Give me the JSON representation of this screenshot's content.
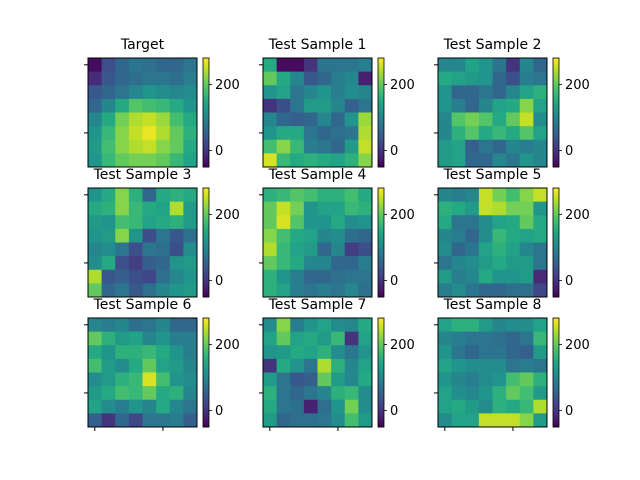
{
  "chart_data": [
    {
      "type": "heatmap",
      "title": "Target",
      "colorbar_ticks": [
        0,
        200
      ],
      "clim": [
        -50,
        280
      ],
      "colormap": "viridis",
      "grid": false,
      "values": [
        [
          -40,
          30,
          60,
          80,
          70,
          60,
          60,
          80
        ],
        [
          -10,
          40,
          60,
          70,
          80,
          80,
          70,
          90
        ],
        [
          40,
          60,
          80,
          100,
          120,
          110,
          100,
          110
        ],
        [
          60,
          100,
          150,
          190,
          180,
          170,
          150,
          120
        ],
        [
          100,
          150,
          210,
          240,
          250,
          230,
          180,
          150
        ],
        [
          120,
          170,
          220,
          250,
          270,
          240,
          200,
          160
        ],
        [
          130,
          180,
          220,
          240,
          250,
          220,
          200,
          150
        ],
        [
          120,
          170,
          200,
          210,
          210,
          200,
          170,
          140
        ]
      ]
    },
    {
      "type": "heatmap",
      "title": "Test Sample 1",
      "colorbar_ticks": [
        0,
        200
      ],
      "clim": [
        -50,
        280
      ],
      "colormap": "viridis",
      "grid": false,
      "values": [
        [
          150,
          -40,
          -40,
          0,
          80,
          80,
          80,
          90
        ],
        [
          200,
          150,
          100,
          40,
          60,
          90,
          100,
          -20
        ],
        [
          120,
          140,
          80,
          100,
          120,
          90,
          110,
          100
        ],
        [
          0,
          30,
          80,
          130,
          130,
          100,
          50,
          80
        ],
        [
          100,
          60,
          50,
          60,
          100,
          60,
          120,
          230
        ],
        [
          120,
          150,
          150,
          80,
          60,
          70,
          80,
          240
        ],
        [
          180,
          220,
          170,
          90,
          80,
          60,
          130,
          250
        ],
        [
          260,
          170,
          150,
          160,
          150,
          140,
          160,
          220
        ]
      ]
    },
    {
      "type": "heatmap",
      "title": "Test Sample 2",
      "colorbar_ticks": [
        0,
        200
      ],
      "clim": [
        -50,
        280
      ],
      "colormap": "viridis",
      "grid": false,
      "values": [
        [
          100,
          100,
          140,
          120,
          80,
          0,
          100,
          60
        ],
        [
          150,
          140,
          130,
          120,
          60,
          30,
          90,
          80
        ],
        [
          120,
          60,
          60,
          80,
          60,
          100,
          140,
          160
        ],
        [
          120,
          90,
          60,
          100,
          140,
          150,
          220,
          140
        ],
        [
          100,
          190,
          210,
          190,
          150,
          200,
          250,
          110
        ],
        [
          100,
          160,
          190,
          150,
          170,
          150,
          190,
          140
        ],
        [
          130,
          140,
          50,
          80,
          60,
          100,
          90,
          100
        ],
        [
          130,
          140,
          60,
          60,
          100,
          80,
          120,
          100
        ]
      ]
    },
    {
      "type": "heatmap",
      "title": "Test Sample 3",
      "colorbar_ticks": [
        0,
        200
      ],
      "clim": [
        -50,
        280
      ],
      "colormap": "viridis",
      "grid": false,
      "values": [
        [
          120,
          150,
          220,
          160,
          60,
          150,
          160,
          150
        ],
        [
          150,
          160,
          220,
          170,
          150,
          140,
          240,
          130
        ],
        [
          130,
          120,
          180,
          170,
          140,
          150,
          160,
          130
        ],
        [
          120,
          130,
          220,
          120,
          30,
          80,
          40,
          70
        ],
        [
          100,
          110,
          80,
          30,
          80,
          70,
          30,
          110
        ],
        [
          110,
          150,
          30,
          10,
          50,
          60,
          120,
          130
        ],
        [
          240,
          40,
          50,
          30,
          20,
          70,
          100,
          120
        ],
        [
          200,
          60,
          80,
          40,
          70,
          100,
          120,
          130
        ]
      ]
    },
    {
      "type": "heatmap",
      "title": "Test Sample 4",
      "colorbar_ticks": [
        0,
        200
      ],
      "clim": [
        -50,
        280
      ],
      "colormap": "viridis",
      "grid": false,
      "values": [
        [
          160,
          170,
          190,
          180,
          160,
          160,
          180,
          150
        ],
        [
          200,
          250,
          210,
          120,
          140,
          140,
          170,
          160
        ],
        [
          200,
          260,
          190,
          120,
          120,
          150,
          110,
          120
        ],
        [
          220,
          180,
          150,
          140,
          100,
          110,
          70,
          60
        ],
        [
          240,
          170,
          140,
          130,
          60,
          100,
          10,
          30
        ],
        [
          200,
          170,
          150,
          100,
          100,
          60,
          60,
          90
        ],
        [
          160,
          120,
          90,
          60,
          60,
          70,
          80,
          80
        ],
        [
          160,
          140,
          90,
          80,
          90,
          80,
          100,
          70
        ]
      ]
    },
    {
      "type": "heatmap",
      "title": "Test Sample 5",
      "colorbar_ticks": [
        0,
        200
      ],
      "clim": [
        -50,
        280
      ],
      "colormap": "viridis",
      "grid": false,
      "values": [
        [
          100,
          90,
          100,
          250,
          210,
          180,
          220,
          250
        ],
        [
          160,
          150,
          130,
          250,
          240,
          210,
          210,
          120
        ],
        [
          150,
          80,
          80,
          110,
          140,
          150,
          200,
          150
        ],
        [
          100,
          90,
          60,
          110,
          170,
          150,
          140,
          150
        ],
        [
          110,
          60,
          80,
          140,
          160,
          140,
          100,
          80
        ],
        [
          80,
          100,
          110,
          130,
          150,
          130,
          130,
          80
        ],
        [
          130,
          90,
          100,
          150,
          120,
          120,
          130,
          -10
        ],
        [
          90,
          110,
          80,
          60,
          60,
          70,
          70,
          20
        ]
      ]
    },
    {
      "type": "heatmap",
      "title": "Test Sample 6",
      "colorbar_ticks": [
        0,
        200
      ],
      "clim": [
        -50,
        280
      ],
      "colormap": "viridis",
      "grid": false,
      "values": [
        [
          100,
          90,
          100,
          70,
          80,
          100,
          60,
          60
        ],
        [
          200,
          160,
          130,
          140,
          100,
          120,
          90,
          90
        ],
        [
          150,
          120,
          160,
          160,
          170,
          150,
          120,
          90
        ],
        [
          180,
          130,
          110,
          150,
          200,
          140,
          130,
          100
        ],
        [
          110,
          130,
          160,
          170,
          260,
          180,
          120,
          110
        ],
        [
          130,
          150,
          180,
          170,
          200,
          150,
          160,
          100
        ],
        [
          140,
          110,
          90,
          120,
          100,
          150,
          100,
          80
        ],
        [
          50,
          0,
          60,
          20,
          80,
          80,
          90,
          50
        ]
      ]
    },
    {
      "type": "heatmap",
      "title": "Test Sample 7",
      "colorbar_ticks": [
        0,
        200
      ],
      "clim": [
        -50,
        280
      ],
      "colormap": "viridis",
      "grid": false,
      "values": [
        [
          110,
          220,
          90,
          120,
          140,
          110,
          100,
          150
        ],
        [
          140,
          200,
          140,
          150,
          130,
          170,
          0,
          140
        ],
        [
          120,
          130,
          150,
          140,
          160,
          110,
          80,
          120
        ],
        [
          0,
          150,
          120,
          80,
          240,
          160,
          100,
          140
        ],
        [
          130,
          80,
          40,
          50,
          200,
          130,
          100,
          150
        ],
        [
          160,
          80,
          60,
          80,
          100,
          160,
          170,
          110
        ],
        [
          150,
          80,
          70,
          -20,
          70,
          120,
          210,
          110
        ],
        [
          130,
          60,
          70,
          70,
          80,
          110,
          180,
          130
        ]
      ]
    },
    {
      "type": "heatmap",
      "title": "Test Sample 8",
      "colorbar_ticks": [
        0,
        200
      ],
      "clim": [
        -50,
        280
      ],
      "colormap": "viridis",
      "grid": false,
      "values": [
        [
          140,
          160,
          160,
          130,
          100,
          110,
          110,
          140
        ],
        [
          100,
          90,
          80,
          80,
          70,
          60,
          80,
          170
        ],
        [
          120,
          80,
          60,
          80,
          80,
          60,
          50,
          130
        ],
        [
          140,
          120,
          110,
          110,
          110,
          80,
          90,
          80
        ],
        [
          120,
          100,
          90,
          110,
          120,
          180,
          200,
          160
        ],
        [
          140,
          110,
          100,
          120,
          160,
          200,
          180,
          130
        ],
        [
          140,
          150,
          130,
          110,
          160,
          150,
          170,
          240
        ],
        [
          110,
          140,
          140,
          250,
          250,
          250,
          220,
          130
        ]
      ]
    }
  ]
}
